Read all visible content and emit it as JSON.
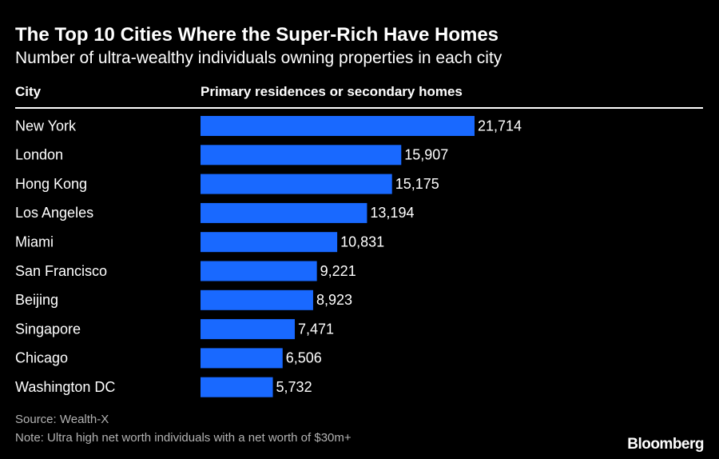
{
  "title": "The Top 10 Cities Where the Super-Rich Have Homes",
  "subtitle": "Number of ultra-wealthy individuals owning properties in each city",
  "headers": {
    "city": "City",
    "value": "Primary residences or secondary homes"
  },
  "source": "Source: Wealth-X",
  "note": "Note: Ultra high net worth individuals with a net worth of $30m+",
  "brand": "Bloomberg",
  "colors": {
    "background": "#000000",
    "bar": "#1969ff",
    "text": "#ffffff",
    "muted": "#b3b3b3"
  },
  "chart_data": {
    "type": "bar",
    "orientation": "horizontal",
    "categories": [
      "New York",
      "London",
      "Hong Kong",
      "Los Angeles",
      "Miami",
      "San Francisco",
      "Beijing",
      "Singapore",
      "Chicago",
      "Washington DC"
    ],
    "values": [
      21714,
      15907,
      15175,
      13194,
      10831,
      9221,
      8923,
      7471,
      6506,
      5732
    ],
    "value_labels": [
      "21,714",
      "15,907",
      "15,175",
      "13,194",
      "10,831",
      "9,221",
      "8,923",
      "7,471",
      "6,506",
      "5,732"
    ],
    "title": "The Top 10 Cities Where the Super-Rich Have Homes",
    "xlabel": "Primary residences or secondary homes",
    "ylabel": "City",
    "xlim": [
      0,
      21714
    ],
    "grid": false,
    "legend": "none"
  }
}
